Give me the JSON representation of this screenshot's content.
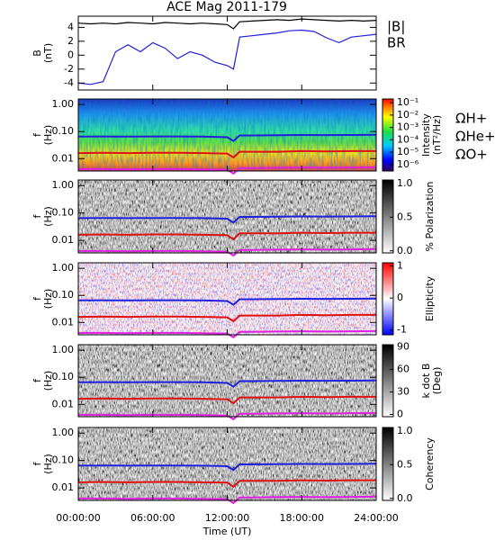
{
  "chart_data": [
    {
      "type": "line",
      "title": "ACE Mag 2011-179",
      "ylabel": [
        "B",
        "(nT)"
      ],
      "xlim": [
        0,
        24
      ],
      "xticks": [
        0,
        6,
        12,
        18,
        24
      ],
      "ylim": [
        -5,
        5.6
      ],
      "yticks": [
        -4,
        -2,
        0,
        2,
        4
      ],
      "x": [
        0,
        1,
        2,
        3,
        4,
        5,
        6,
        7,
        8,
        9,
        10,
        11,
        12,
        12.5,
        13,
        14,
        15,
        16,
        17,
        18,
        19,
        20,
        21,
        22,
        23,
        24
      ],
      "series": [
        {
          "name": "|B|",
          "color": "#000000",
          "values": [
            4.6,
            4.5,
            4.6,
            4.5,
            4.7,
            4.6,
            4.5,
            4.7,
            4.6,
            4.5,
            4.6,
            4.5,
            4.4,
            3.8,
            4.8,
            4.9,
            5.0,
            5.1,
            5.0,
            5.2,
            5.1,
            5.0,
            4.9,
            5.0,
            4.9,
            5.0
          ]
        },
        {
          "name": "BR",
          "color": "#1f1fe0",
          "values": [
            -4.0,
            -4.2,
            -3.8,
            0.5,
            1.5,
            0.5,
            1.8,
            1.0,
            -0.5,
            0.5,
            0.0,
            -1.0,
            -1.5,
            -2.0,
            2.6,
            2.8,
            3.0,
            3.2,
            3.5,
            3.6,
            3.4,
            2.5,
            1.8,
            2.6,
            2.8,
            3.0
          ]
        }
      ]
    },
    {
      "type": "spectrogram",
      "ylabel": [
        "f",
        "(Hz)"
      ],
      "ylog": true,
      "colormap": "jet",
      "xlim": [
        0,
        24
      ],
      "xticks": [
        0,
        6,
        12,
        18,
        24
      ],
      "ylim": [
        0.0035,
        1.6
      ],
      "yticks": [
        {
          "value": 1,
          "label": "1.00"
        },
        {
          "value": 0.1,
          "label": "0.10"
        },
        {
          "value": 0.01,
          "label": "0.01"
        }
      ],
      "clabel": [
        "Intensity",
        "(nT²/Hz)"
      ],
      "clog": true,
      "clim": [
        3e-07,
        0.2
      ],
      "cticks": [
        {
          "value": 0.1,
          "label": "10⁻¹"
        },
        {
          "value": 0.01,
          "label": "10⁻²"
        },
        {
          "value": 0.001,
          "label": "10⁻³"
        },
        {
          "value": 0.0001,
          "label": "10⁻⁴"
        },
        {
          "value": 1e-05,
          "label": "10⁻⁵"
        },
        {
          "value": 1e-06,
          "label": "10⁻⁶"
        }
      ],
      "x": [
        0,
        2,
        4,
        6,
        8,
        10,
        12,
        12.5,
        13,
        14,
        16,
        18,
        20,
        22,
        24
      ],
      "series": [
        {
          "name": "ΩH+",
          "color": "#1f1fe0",
          "values": [
            0.065,
            0.066,
            0.065,
            0.066,
            0.066,
            0.065,
            0.062,
            0.045,
            0.072,
            0.072,
            0.073,
            0.075,
            0.074,
            0.075,
            0.076
          ]
        },
        {
          "name": "ΩHe+",
          "color": "#e01010",
          "values": [
            0.016,
            0.0165,
            0.016,
            0.0165,
            0.0165,
            0.016,
            0.0155,
            0.011,
            0.018,
            0.018,
            0.018,
            0.019,
            0.0185,
            0.019,
            0.019
          ]
        },
        {
          "name": "ΩO+",
          "color": "#e020e0",
          "values": [
            0.0041,
            0.0041,
            0.004,
            0.0041,
            0.0041,
            0.004,
            0.0039,
            0.0028,
            0.0045,
            0.0045,
            0.0046,
            0.0047,
            0.0046,
            0.0047,
            0.0048
          ]
        }
      ]
    },
    {
      "type": "spectrogram",
      "ylabel": [
        "f",
        "(Hz)"
      ],
      "ylog": true,
      "colormap": "gray_r",
      "xlim": [
        0,
        24
      ],
      "xticks": [
        0,
        6,
        12,
        18,
        24
      ],
      "ylim": [
        0.0035,
        1.6
      ],
      "yticks": [
        {
          "value": 1,
          "label": "1.00"
        },
        {
          "value": 0.1,
          "label": "0.10"
        },
        {
          "value": 0.01,
          "label": "0.01"
        }
      ],
      "clabel": [
        "% Polarization"
      ],
      "clim": [
        -0.03,
        1.05
      ],
      "cticks": [
        {
          "value": 0,
          "label": "0.0"
        },
        {
          "value": 0.5,
          "label": "0.5"
        },
        {
          "value": 1,
          "label": "1.0"
        }
      ],
      "x": [
        0,
        2,
        4,
        6,
        8,
        10,
        12,
        12.5,
        13,
        14,
        16,
        18,
        20,
        22,
        24
      ],
      "series": [
        {
          "color": "#1f1fe0",
          "values": [
            0.065,
            0.066,
            0.065,
            0.066,
            0.066,
            0.065,
            0.062,
            0.045,
            0.072,
            0.072,
            0.073,
            0.075,
            0.074,
            0.075,
            0.076
          ]
        },
        {
          "color": "#e01010",
          "values": [
            0.016,
            0.0165,
            0.016,
            0.0165,
            0.0165,
            0.016,
            0.0155,
            0.011,
            0.018,
            0.018,
            0.018,
            0.019,
            0.0185,
            0.019,
            0.019
          ]
        },
        {
          "color": "#e020e0",
          "values": [
            0.0041,
            0.0041,
            0.004,
            0.0041,
            0.0041,
            0.004,
            0.0039,
            0.0028,
            0.0045,
            0.0045,
            0.0046,
            0.0047,
            0.0046,
            0.0047,
            0.0048
          ]
        }
      ]
    },
    {
      "type": "spectrogram",
      "ylabel": [
        "f",
        "(Hz)"
      ],
      "ylog": true,
      "colormap": "bwr",
      "xlim": [
        0,
        24
      ],
      "xticks": [
        0,
        6,
        12,
        18,
        24
      ],
      "ylim": [
        0.0035,
        1.6
      ],
      "yticks": [
        {
          "value": 1,
          "label": "1.00"
        },
        {
          "value": 0.1,
          "label": "0.10"
        },
        {
          "value": 0.01,
          "label": "0.01"
        }
      ],
      "clabel": [
        "Ellipticity"
      ],
      "clim": [
        -1.15,
        1.1
      ],
      "cticks": [
        1,
        0,
        -1
      ],
      "x": [
        0,
        2,
        4,
        6,
        8,
        10,
        12,
        12.5,
        13,
        14,
        16,
        18,
        20,
        22,
        24
      ],
      "series": [
        {
          "color": "#1f1fe0",
          "values": [
            0.065,
            0.066,
            0.065,
            0.066,
            0.066,
            0.065,
            0.062,
            0.045,
            0.072,
            0.072,
            0.073,
            0.075,
            0.074,
            0.075,
            0.076
          ]
        },
        {
          "color": "#e01010",
          "values": [
            0.016,
            0.0165,
            0.016,
            0.0165,
            0.0165,
            0.016,
            0.0155,
            0.011,
            0.018,
            0.018,
            0.018,
            0.019,
            0.0185,
            0.019,
            0.019
          ]
        },
        {
          "color": "#e020e0",
          "values": [
            0.0041,
            0.0041,
            0.004,
            0.0041,
            0.0041,
            0.004,
            0.0039,
            0.0028,
            0.0045,
            0.0045,
            0.0046,
            0.0047,
            0.0046,
            0.0047,
            0.0048
          ]
        }
      ]
    },
    {
      "type": "spectrogram",
      "ylabel": [
        "f",
        "(Hz)"
      ],
      "ylog": true,
      "colormap": "gray_r",
      "xlim": [
        0,
        24
      ],
      "xticks": [
        0,
        6,
        12,
        18,
        24
      ],
      "ylim": [
        0.0035,
        1.6
      ],
      "yticks": [
        {
          "value": 1,
          "label": "1.00"
        },
        {
          "value": 0.1,
          "label": "0.10"
        },
        {
          "value": 0.01,
          "label": "0.01"
        }
      ],
      "clabel": [
        "k dot B",
        "(Deg)"
      ],
      "clim": [
        -3,
        93
      ],
      "cticks": [
        0,
        30,
        60,
        90
      ],
      "x": [
        0,
        2,
        4,
        6,
        8,
        10,
        12,
        12.5,
        13,
        14,
        16,
        18,
        20,
        22,
        24
      ],
      "series": [
        {
          "color": "#1f1fe0",
          "values": [
            0.065,
            0.066,
            0.065,
            0.066,
            0.066,
            0.065,
            0.062,
            0.045,
            0.072,
            0.072,
            0.073,
            0.075,
            0.074,
            0.075,
            0.076
          ]
        },
        {
          "color": "#e01010",
          "values": [
            0.016,
            0.0165,
            0.016,
            0.0165,
            0.0165,
            0.016,
            0.0155,
            0.011,
            0.018,
            0.018,
            0.018,
            0.019,
            0.0185,
            0.019,
            0.019
          ]
        },
        {
          "color": "#e020e0",
          "values": [
            0.0041,
            0.0041,
            0.004,
            0.0041,
            0.0041,
            0.004,
            0.0039,
            0.0028,
            0.0045,
            0.0045,
            0.0046,
            0.0047,
            0.0046,
            0.0047,
            0.0048
          ]
        }
      ]
    },
    {
      "type": "spectrogram",
      "ylabel": [
        "f",
        "(Hz)"
      ],
      "ylog": true,
      "colormap": "gray_r",
      "xlim": [
        0,
        24
      ],
      "xticks": [
        {
          "value": 0,
          "label": "00:00:00"
        },
        {
          "value": 6,
          "label": "06:00:00"
        },
        {
          "value": 12,
          "label": "12:00:00"
        },
        {
          "value": 18,
          "label": "18:00:00"
        },
        {
          "value": 24,
          "label": "24:00:00"
        }
      ],
      "xlabel": "Time (UT)",
      "ylim": [
        0.0035,
        1.6
      ],
      "yticks": [
        {
          "value": 1,
          "label": "1.00"
        },
        {
          "value": 0.1,
          "label": "0.10"
        },
        {
          "value": 0.01,
          "label": "0.01"
        }
      ],
      "clabel": [
        "Coherency"
      ],
      "clim": [
        -0.03,
        1.05
      ],
      "cticks": [
        {
          "value": 0,
          "label": "0.0"
        },
        {
          "value": 0.5,
          "label": "0.5"
        },
        {
          "value": 1,
          "label": "1.0"
        }
      ],
      "x": [
        0,
        2,
        4,
        6,
        8,
        10,
        12,
        12.5,
        13,
        14,
        16,
        18,
        20,
        22,
        24
      ],
      "series": [
        {
          "color": "#1f1fe0",
          "values": [
            0.065,
            0.066,
            0.065,
            0.066,
            0.066,
            0.065,
            0.062,
            0.045,
            0.072,
            0.072,
            0.073,
            0.075,
            0.074,
            0.075,
            0.076
          ]
        },
        {
          "color": "#e01010",
          "values": [
            0.016,
            0.0165,
            0.016,
            0.0165,
            0.0165,
            0.016,
            0.0155,
            0.011,
            0.018,
            0.018,
            0.018,
            0.019,
            0.0185,
            0.019,
            0.019
          ]
        },
        {
          "color": "#e020e0",
          "values": [
            0.0041,
            0.0041,
            0.004,
            0.0041,
            0.0041,
            0.004,
            0.0039,
            0.0028,
            0.0045,
            0.0045,
            0.0046,
            0.0047,
            0.0046,
            0.0047,
            0.0048
          ]
        }
      ]
    }
  ]
}
